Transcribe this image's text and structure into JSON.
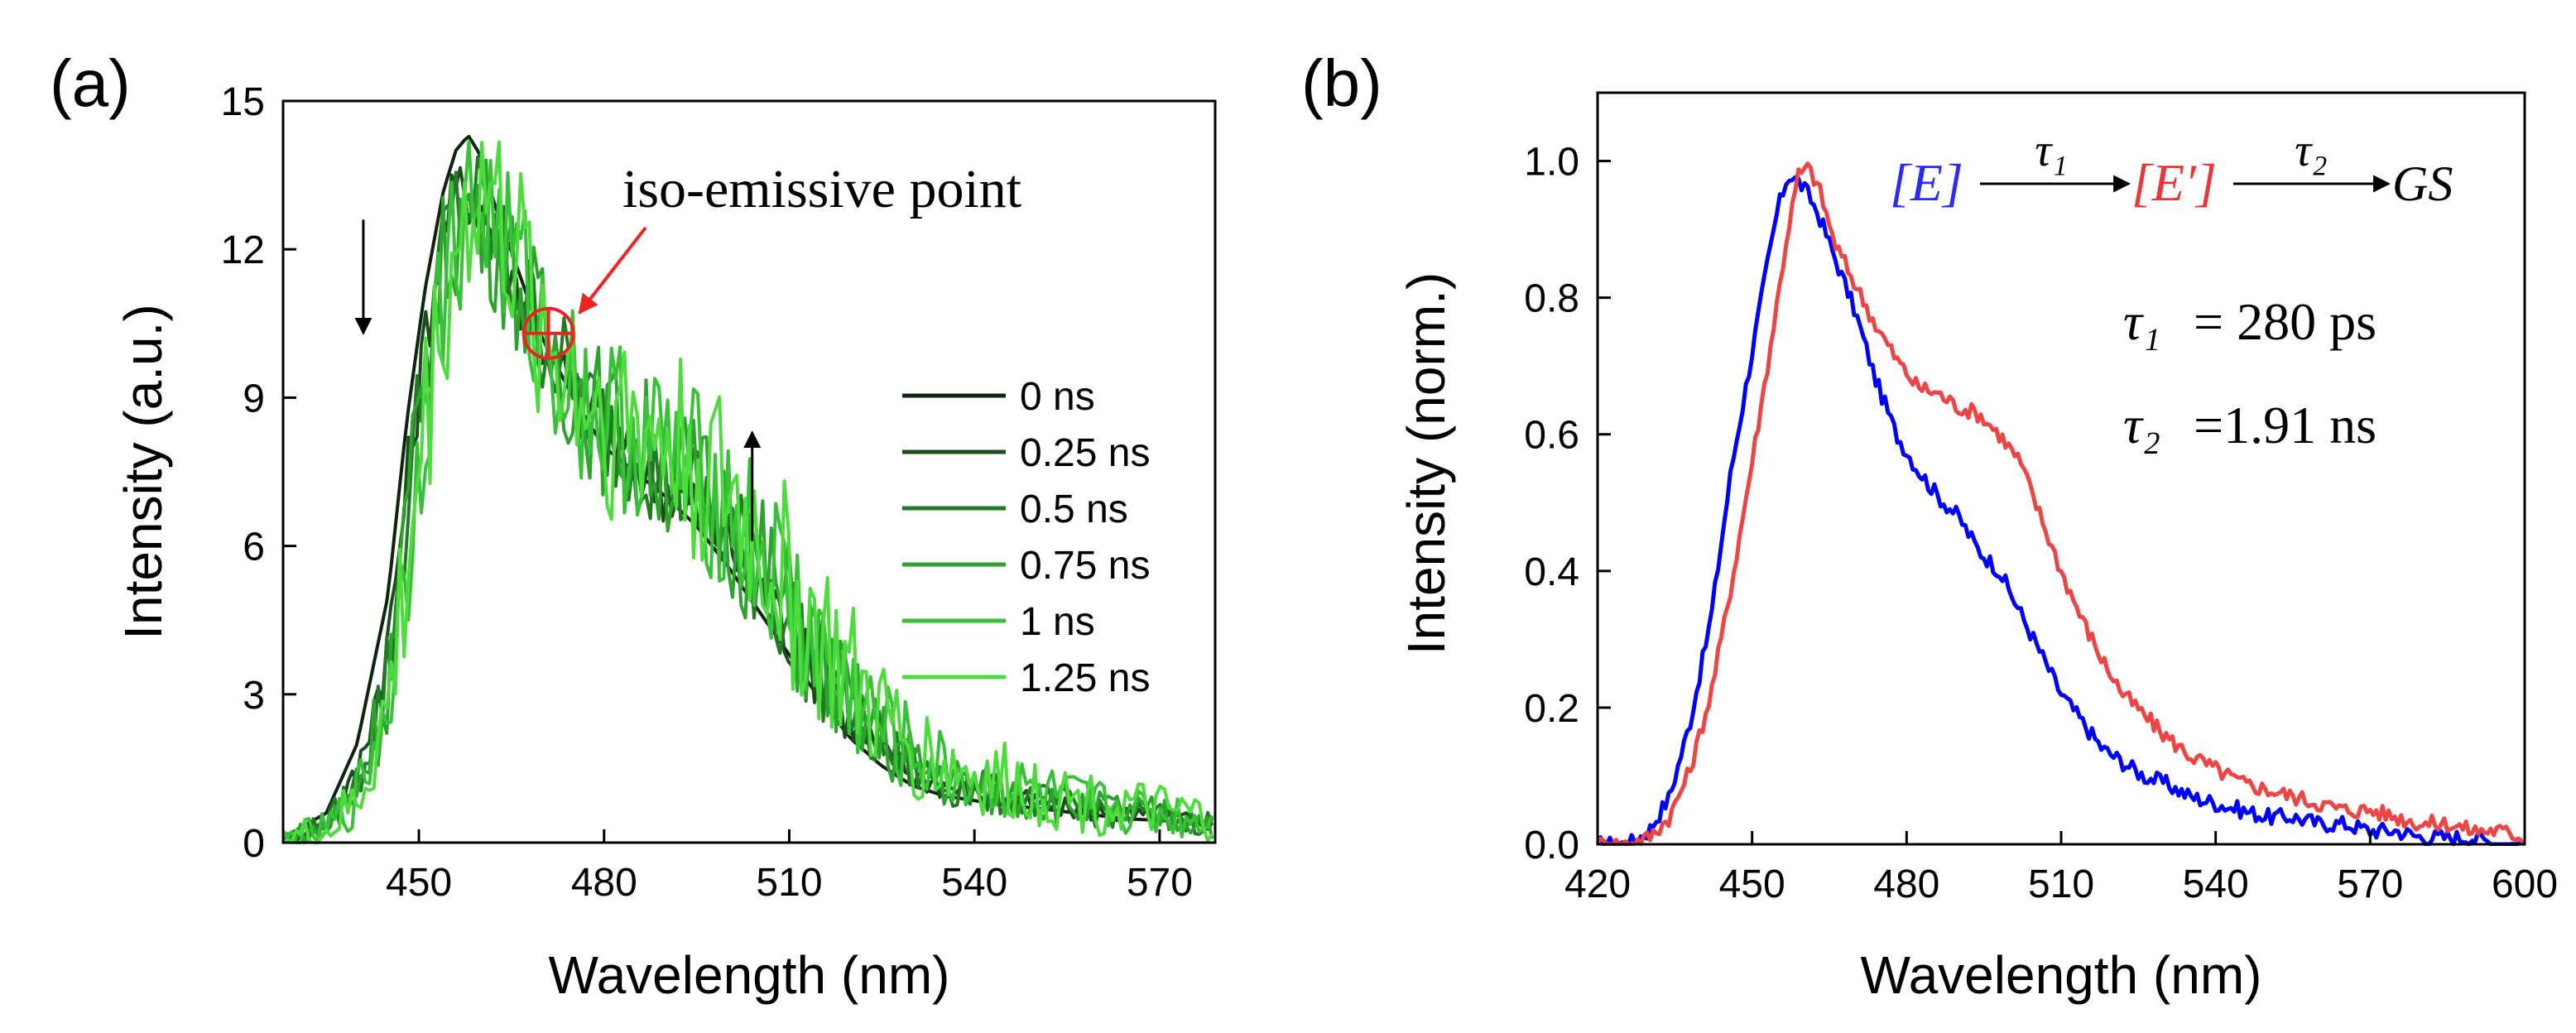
{
  "panels": {
    "a": {
      "label": "(a)",
      "chart_data": {
        "type": "line",
        "title": "",
        "xlabel": "Wavelength (nm)",
        "ylabel": "Intensity (a.u.)",
        "xlim": [
          428,
          579
        ],
        "ylim": [
          0,
          15
        ],
        "xticks": [
          450,
          480,
          510,
          540,
          570
        ],
        "yticks": [
          0,
          3,
          6,
          9,
          12,
          15
        ],
        "legend_position": "center-right",
        "series": [
          {
            "name": "0 ns",
            "color": "#0d240d",
            "jitter": 0.0,
            "x": [
              428,
              435,
              440,
              445,
              448,
              451,
              454,
              456,
              458,
              460,
              462,
              466,
              470,
              475,
              480,
              485,
              490,
              495,
              500,
              505,
              510,
              515,
              520,
              525,
              530,
              535,
              540,
              545,
              550,
              555,
              560,
              565,
              570,
              575,
              579
            ],
            "y": [
              0.1,
              0.6,
              2.0,
              5.0,
              8.5,
              11.2,
              13.2,
              14.0,
              14.3,
              13.9,
              13.0,
              11.6,
              10.2,
              9.0,
              8.0,
              7.5,
              7.0,
              6.4,
              5.6,
              4.7,
              3.8,
              2.9,
              2.1,
              1.55,
              1.15,
              0.95,
              0.85,
              0.75,
              0.7,
              0.62,
              0.55,
              0.48,
              0.45,
              0.4,
              0.35
            ]
          },
          {
            "name": "0.25 ns",
            "color": "#1a4d1a",
            "jitter": 0.05,
            "x": [
              428,
              435,
              440,
              445,
              448,
              451,
              454,
              456,
              458,
              460,
              462,
              466,
              470,
              475,
              480,
              485,
              490,
              495,
              500,
              505,
              510,
              515,
              520,
              525,
              530,
              535,
              540,
              545,
              550,
              555,
              560,
              565,
              570,
              575,
              579
            ],
            "y": [
              0.05,
              0.4,
              1.4,
              4.0,
              7.2,
              10.2,
              12.4,
              13.1,
              13.2,
              12.9,
              12.3,
              11.2,
              10.2,
              9.1,
              8.2,
              7.7,
              7.2,
              6.7,
              6.0,
              5.2,
              4.2,
              3.3,
              2.4,
              1.8,
              1.4,
              1.15,
              1.0,
              0.9,
              0.8,
              0.7,
              0.62,
              0.55,
              0.5,
              0.45,
              0.4
            ]
          },
          {
            "name": "0.5 ns",
            "color": "#227a22",
            "jitter": 0.08,
            "x": [
              428,
              435,
              440,
              445,
              448,
              451,
              454,
              456,
              458,
              460,
              462,
              466,
              470,
              475,
              480,
              485,
              490,
              495,
              500,
              505,
              510,
              515,
              520,
              525,
              530,
              535,
              540,
              545,
              550,
              555,
              560,
              565,
              570,
              575,
              579
            ],
            "y": [
              0.05,
              0.35,
              1.2,
              3.5,
              6.7,
              9.8,
              12.0,
              12.8,
              13.0,
              12.8,
              12.3,
              11.3,
              10.3,
              9.2,
              8.4,
              7.9,
              7.5,
              7.0,
              6.3,
              5.5,
              4.5,
              3.5,
              2.6,
              1.95,
              1.5,
              1.2,
              1.05,
              0.95,
              0.85,
              0.75,
              0.65,
              0.58,
              0.52,
              0.46,
              0.4
            ]
          },
          {
            "name": "0.75 ns",
            "color": "#2da32d",
            "jitter": 0.1,
            "x": [
              428,
              435,
              440,
              445,
              448,
              451,
              454,
              456,
              458,
              460,
              462,
              466,
              470,
              475,
              480,
              485,
              490,
              495,
              500,
              505,
              510,
              515,
              520,
              525,
              530,
              535,
              540,
              545,
              550,
              555,
              560,
              565,
              570,
              575,
              579
            ],
            "y": [
              0.05,
              0.3,
              1.1,
              3.2,
              6.3,
              9.4,
              11.7,
              12.5,
              12.8,
              12.7,
              12.3,
              11.3,
              10.3,
              9.3,
              8.5,
              8.1,
              7.7,
              7.2,
              6.5,
              5.7,
              4.7,
              3.7,
              2.8,
              2.1,
              1.6,
              1.3,
              1.15,
              1.0,
              0.9,
              0.8,
              0.7,
              0.6,
              0.55,
              0.48,
              0.42
            ]
          },
          {
            "name": "1 ns",
            "color": "#36c136",
            "jitter": 0.12,
            "x": [
              428,
              435,
              440,
              445,
              448,
              451,
              454,
              456,
              458,
              460,
              462,
              466,
              470,
              475,
              480,
              485,
              490,
              495,
              500,
              505,
              510,
              515,
              520,
              525,
              530,
              535,
              540,
              545,
              550,
              555,
              560,
              565,
              570,
              575,
              579
            ],
            "y": [
              0.05,
              0.25,
              0.9,
              2.9,
              5.8,
              8.9,
              11.2,
              12.3,
              12.8,
              13.0,
              12.6,
              11.5,
              10.3,
              9.3,
              8.6,
              8.3,
              7.9,
              7.4,
              6.8,
              5.9,
              4.9,
              3.9,
              3.0,
              2.3,
              1.8,
              1.45,
              1.25,
              1.1,
              1.0,
              0.85,
              0.75,
              0.65,
              0.58,
              0.5,
              0.44
            ]
          },
          {
            "name": "1.25 ns",
            "color": "#4cdc3c",
            "jitter": 0.14,
            "x": [
              428,
              435,
              440,
              445,
              448,
              451,
              454,
              456,
              458,
              460,
              462,
              466,
              470,
              475,
              480,
              485,
              490,
              495,
              500,
              505,
              510,
              515,
              520,
              525,
              530,
              535,
              540,
              545,
              550,
              555,
              560,
              565,
              570,
              575,
              579
            ],
            "y": [
              0.05,
              0.2,
              0.8,
              2.6,
              5.4,
              8.5,
              10.9,
              12.1,
              12.8,
              13.2,
              12.9,
              11.7,
              10.4,
              9.4,
              8.7,
              8.4,
              8.1,
              7.7,
              7.0,
              6.1,
              5.1,
              4.1,
              3.2,
              2.45,
              1.9,
              1.55,
              1.35,
              1.2,
              1.05,
              0.9,
              0.8,
              0.7,
              0.6,
              0.52,
              0.45
            ]
          }
        ],
        "annotations": {
          "iso_text": "iso-emissive point",
          "iso_point": [
            471,
            10.3
          ],
          "down_arrow_x": 441,
          "down_arrow_y": [
            12.6,
            10.3
          ],
          "up_arrow_x": 504,
          "up_arrow_y": [
            6.1,
            8.3
          ]
        }
      }
    },
    "b": {
      "label": "(b)",
      "chart_data": {
        "type": "line",
        "title": "",
        "xlabel": "Wavelength (nm)",
        "ylabel": "Intensity (norm.)",
        "xlim": [
          420,
          600
        ],
        "ylim": [
          0,
          1.1
        ],
        "xticks": [
          420,
          450,
          480,
          510,
          540,
          570,
          600
        ],
        "yticks": [
          0.0,
          0.2,
          0.4,
          0.6,
          0.8,
          1.0
        ],
        "series": [
          {
            "name": "E",
            "color": "#0000ff",
            "jitter": 0.012,
            "x": [
              420,
              426,
              430,
              434,
              438,
              442,
              446,
              450,
              453,
              455,
              457,
              459,
              461,
              463,
              466,
              470,
              474,
              478,
              482,
              486,
              490,
              494,
              498,
              502,
              506,
              510,
              514,
              518,
              522,
              526,
              530,
              535,
              540,
              545,
              550,
              555,
              560,
              565,
              570,
              575,
              580,
              585,
              590,
              595,
              600
            ],
            "y": [
              0.0,
              0.0,
              0.02,
              0.07,
              0.18,
              0.33,
              0.55,
              0.72,
              0.85,
              0.93,
              0.98,
              0.97,
              0.95,
              0.92,
              0.86,
              0.78,
              0.68,
              0.6,
              0.55,
              0.51,
              0.48,
              0.43,
              0.4,
              0.34,
              0.28,
              0.22,
              0.18,
              0.14,
              0.12,
              0.1,
              0.09,
              0.07,
              0.06,
              0.05,
              0.04,
              0.04,
              0.03,
              0.03,
              0.02,
              0.02,
              0.01,
              0.01,
              0.01,
              0.0,
              0.0
            ]
          },
          {
            "name": "E'",
            "color": "#ee4444",
            "jitter": 0.012,
            "x": [
              420,
              426,
              430,
              434,
              438,
              442,
              446,
              450,
              453,
              455,
              457,
              459,
              461,
              463,
              466,
              470,
              474,
              478,
              482,
              486,
              490,
              494,
              498,
              502,
              506,
              510,
              514,
              518,
              522,
              526,
              530,
              535,
              540,
              545,
              550,
              555,
              560,
              565,
              570,
              575,
              580,
              585,
              590,
              595,
              600
            ],
            "y": [
              0.0,
              0.0,
              0.01,
              0.04,
              0.11,
              0.22,
              0.38,
              0.56,
              0.7,
              0.8,
              0.9,
              0.98,
              0.99,
              0.96,
              0.88,
              0.82,
              0.76,
              0.71,
              0.67,
              0.66,
              0.64,
              0.63,
              0.6,
              0.56,
              0.48,
              0.4,
              0.33,
              0.27,
              0.22,
              0.19,
              0.16,
              0.13,
              0.11,
              0.09,
              0.08,
              0.07,
              0.06,
              0.05,
              0.05,
              0.04,
              0.03,
              0.03,
              0.02,
              0.02,
              0.01
            ]
          }
        ],
        "scheme": {
          "state1": "[E]",
          "tau1": "τ₁",
          "state2": "[E′]",
          "tau2": "τ₂",
          "ground": "GS",
          "state1_color": "#2a2aff",
          "state2_color": "#ee3333"
        },
        "lifetimes": [
          {
            "symbol": "τ₁",
            "value": "= 280 ps"
          },
          {
            "symbol": "τ₂",
            "value": "=1.91 ns"
          }
        ]
      }
    }
  }
}
